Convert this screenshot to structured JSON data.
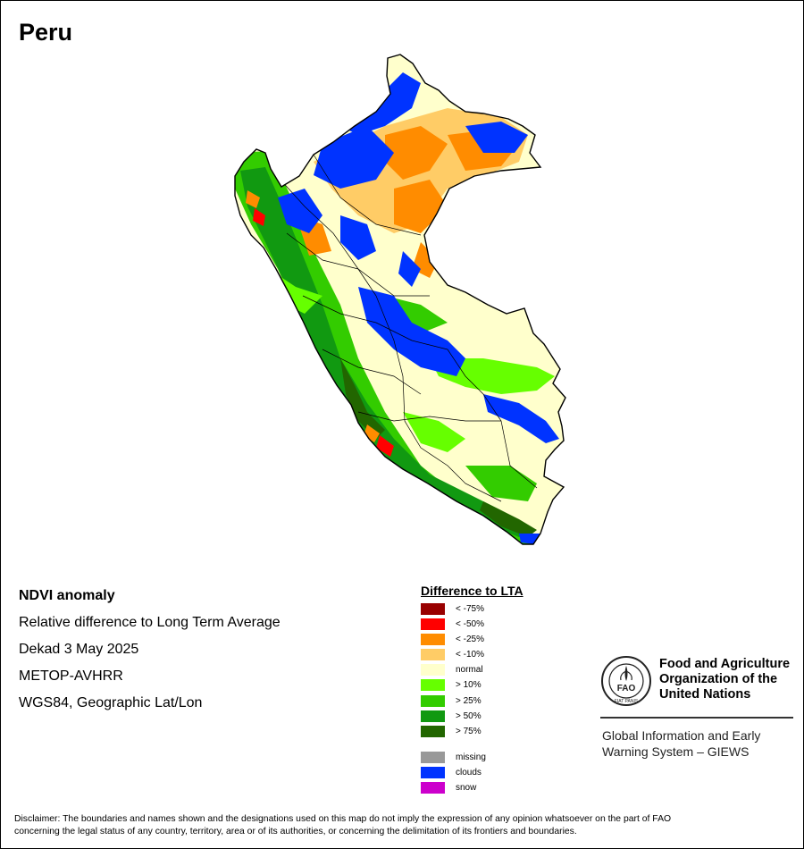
{
  "title": "Peru",
  "info": {
    "product": "NDVI anomaly",
    "description": "Relative difference to Long Term Average",
    "period": "Dekad 3 May 2025",
    "sensor": "METOP-AVHRR",
    "projection": "WGS84, Geographic Lat/Lon"
  },
  "legend": {
    "title": "Difference to LTA",
    "classes": [
      {
        "label": "< -75%",
        "color": "#990000"
      },
      {
        "label": "< -50%",
        "color": "#ff0000"
      },
      {
        "label": "< -25%",
        "color": "#ff8c00"
      },
      {
        "label": "< -10%",
        "color": "#ffcc66"
      },
      {
        "label": "normal",
        "color": "#ffffcc"
      },
      {
        "label": "> 10%",
        "color": "#66ff00"
      },
      {
        "label": "> 25%",
        "color": "#33cc00"
      },
      {
        "label": "> 50%",
        "color": "#119911"
      },
      {
        "label": "> 75%",
        "color": "#226600"
      }
    ],
    "special": [
      {
        "label": "missing",
        "color": "#999999"
      },
      {
        "label": "clouds",
        "color": "#0033ff"
      },
      {
        "label": "snow",
        "color": "#cc00cc"
      }
    ]
  },
  "organization": {
    "name_line1": "Food and Agriculture",
    "name_line2": "Organization of the",
    "name_line3": "United Nations",
    "emblem_text": "FAO",
    "emblem_ring": "FIAT PANIS",
    "program_line1": "Global Information and Early",
    "program_line2": "Warning System – GIEWS"
  },
  "disclaimer_line1": "Disclaimer: The boundaries and names shown and the designations used on this map do not imply the expression of any opinion whatsoever on the part of FAO",
  "disclaimer_line2": "concerning the legal status of any country, territory, area or of its authorities, or concerning the delimitation of its frontiers and boundaries.",
  "map_colors": {
    "normal": "#ffffcc",
    "dry_light": "#ffcc66",
    "dry": "#ff8c00",
    "very_dry": "#ff0000",
    "extreme_dry": "#990000",
    "wet_light": "#66ff00",
    "wet": "#33cc00",
    "very_wet": "#119911",
    "extreme_wet": "#226600",
    "clouds": "#0033ff",
    "border": "#000000"
  }
}
